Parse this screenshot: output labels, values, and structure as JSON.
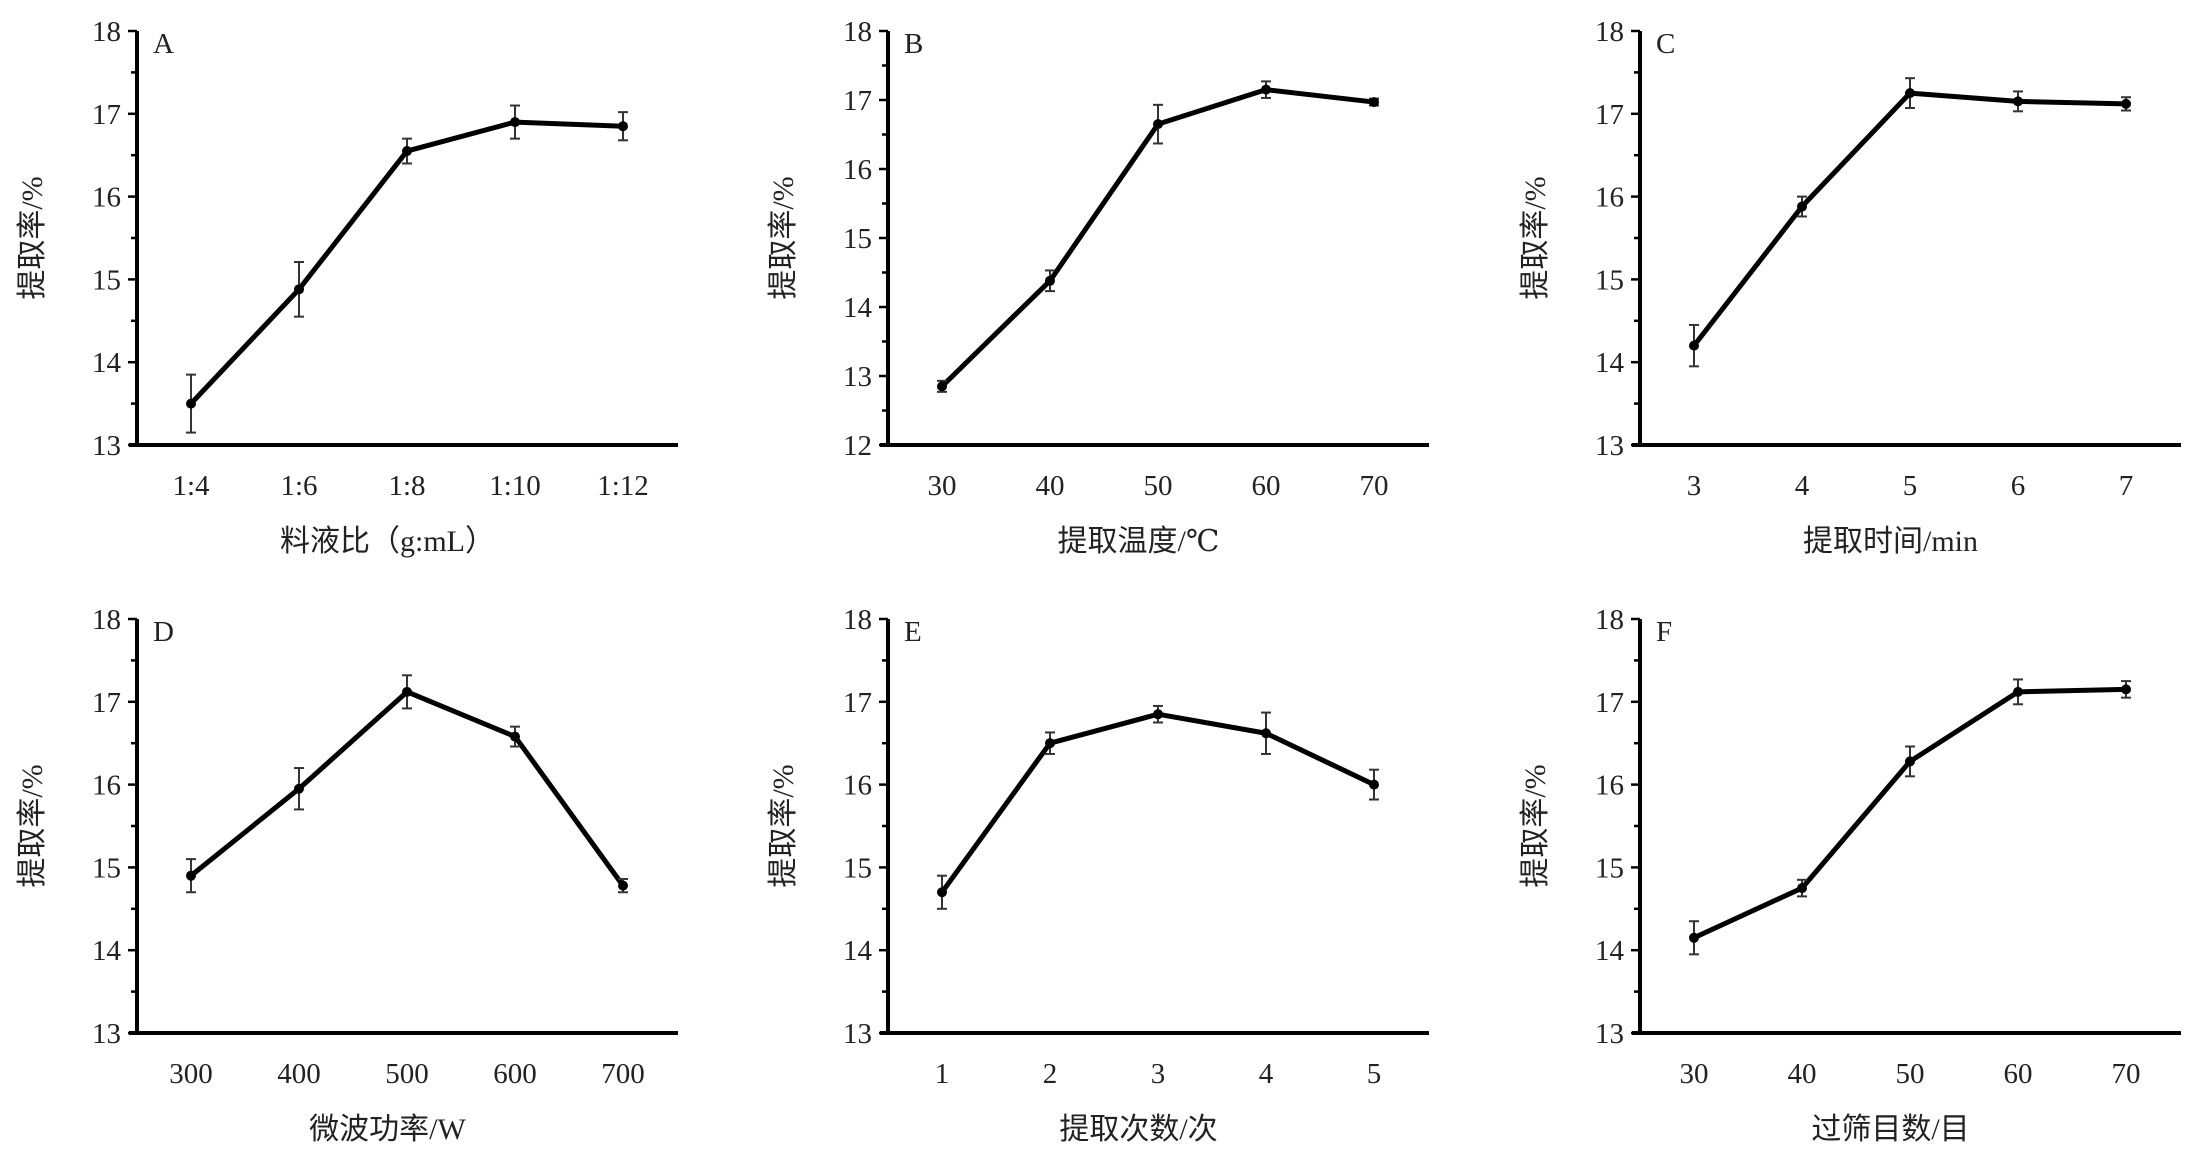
{
  "chart_data": [
    {
      "type": "line",
      "panel": "A",
      "xlabel": "料液比（g:mL）",
      "ylabel": "提取率/%",
      "categories": [
        "1:4",
        "1:6",
        "1:8",
        "1:10",
        "1:12"
      ],
      "values": [
        13.5,
        14.88,
        16.55,
        16.9,
        16.85
      ],
      "errors": [
        0.35,
        0.33,
        0.15,
        0.2,
        0.17
      ],
      "ylim": [
        13,
        18
      ],
      "yticks": [
        13,
        14,
        15,
        16,
        17,
        18
      ]
    },
    {
      "type": "line",
      "panel": "B",
      "xlabel": "提取温度/℃",
      "ylabel": "提取率/%",
      "categories": [
        "30",
        "40",
        "50",
        "60",
        "70"
      ],
      "values": [
        12.85,
        14.38,
        16.65,
        17.15,
        16.97
      ],
      "errors": [
        0.08,
        0.15,
        0.28,
        0.12,
        0.05
      ],
      "ylim": [
        12,
        18
      ],
      "yticks": [
        12,
        13,
        14,
        15,
        16,
        17,
        18
      ]
    },
    {
      "type": "line",
      "panel": "C",
      "xlabel": "提取时间/min",
      "ylabel": "提取率/%",
      "categories": [
        "3",
        "4",
        "5",
        "6",
        "7"
      ],
      "values": [
        14.2,
        15.88,
        17.25,
        17.15,
        17.12
      ],
      "errors": [
        0.25,
        0.12,
        0.18,
        0.12,
        0.08
      ],
      "ylim": [
        13,
        18
      ],
      "yticks": [
        13,
        14,
        15,
        16,
        17,
        18
      ]
    },
    {
      "type": "line",
      "panel": "D",
      "xlabel": "微波功率/W",
      "ylabel": "提取率/%",
      "categories": [
        "300",
        "400",
        "500",
        "600",
        "700"
      ],
      "values": [
        14.9,
        15.95,
        17.12,
        16.58,
        14.78
      ],
      "errors": [
        0.2,
        0.25,
        0.2,
        0.12,
        0.08
      ],
      "ylim": [
        13,
        18
      ],
      "yticks": [
        13,
        14,
        15,
        16,
        17,
        18
      ]
    },
    {
      "type": "line",
      "panel": "E",
      "xlabel": "提取次数/次",
      "ylabel": "提取率/%",
      "categories": [
        "1",
        "2",
        "3",
        "4",
        "5"
      ],
      "values": [
        14.7,
        16.5,
        16.85,
        16.62,
        16.0
      ],
      "errors": [
        0.2,
        0.13,
        0.1,
        0.25,
        0.18
      ],
      "ylim": [
        13,
        18
      ],
      "yticks": [
        13,
        14,
        15,
        16,
        17,
        18
      ]
    },
    {
      "type": "line",
      "panel": "F",
      "xlabel": "过筛目数/目",
      "ylabel": "提取率/%",
      "categories": [
        "30",
        "40",
        "50",
        "60",
        "70"
      ],
      "values": [
        14.15,
        14.75,
        16.28,
        17.12,
        17.15
      ],
      "errors": [
        0.2,
        0.1,
        0.18,
        0.15,
        0.1
      ],
      "ylim": [
        13,
        18
      ],
      "yticks": [
        13,
        14,
        15,
        16,
        17,
        18
      ]
    }
  ]
}
